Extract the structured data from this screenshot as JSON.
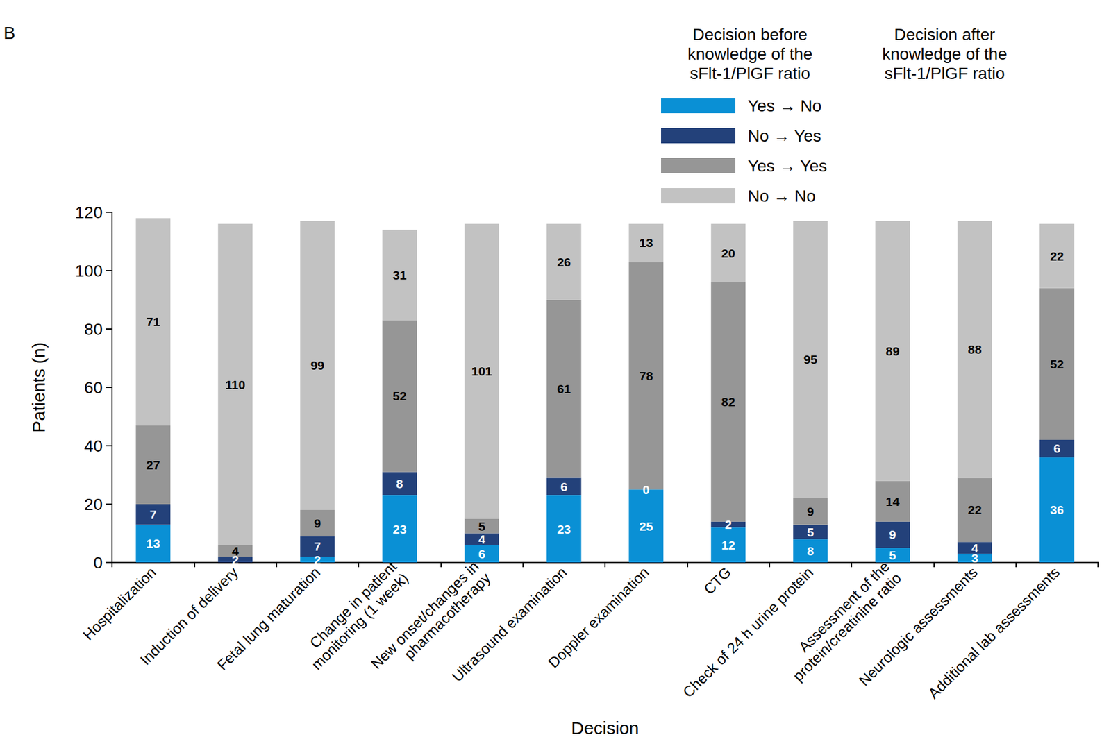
{
  "chart_data": {
    "type": "bar",
    "annotations": [
      "B"
    ],
    "legend_headers": [
      "Decision before\nknowledge of the\nsFlt-1/PlGF ratio",
      "Decision after\nknowledge of the\nsFlt-1/PlGF ratio"
    ],
    "xlabel": "Decision",
    "ylabel": "Patients (n)",
    "categories": [
      "Hospitalization",
      "Induction of delivery",
      "Fetal lung maturation",
      "Change in patient\nmonitoring (1 week)",
      "New onset/changes in\npharmacotherapy",
      "Ultrasound examination",
      "Doppler examination",
      "CTG",
      "Check of 24 h urine protein",
      "Assessment of the\nprotein/creatinine ratio",
      "Neurologic assessments",
      "Additional lab assessments"
    ],
    "series": [
      {
        "name": "Yes → No",
        "color": "#0a90d5",
        "values": [
          13,
          null,
          2,
          23,
          6,
          23,
          25,
          12,
          8,
          5,
          3,
          36
        ]
      },
      {
        "name": "No → Yes",
        "color": "#23417a",
        "values": [
          7,
          2,
          7,
          8,
          4,
          6,
          0,
          2,
          5,
          9,
          4,
          6
        ]
      },
      {
        "name": "Yes → Yes",
        "color": "#969696",
        "values": [
          27,
          4,
          9,
          52,
          5,
          61,
          78,
          82,
          9,
          14,
          22,
          52
        ]
      },
      {
        "name": "No → No",
        "color": "#c2c2c2",
        "values": [
          71,
          110,
          99,
          31,
          101,
          26,
          13,
          20,
          95,
          89,
          88,
          22
        ]
      }
    ],
    "ylim": [
      0,
      120
    ],
    "yticks": [
      0,
      20,
      40,
      60,
      80,
      100,
      120
    ],
    "stacked": true,
    "data_labels": true,
    "grid": false,
    "legend": "top-right"
  }
}
